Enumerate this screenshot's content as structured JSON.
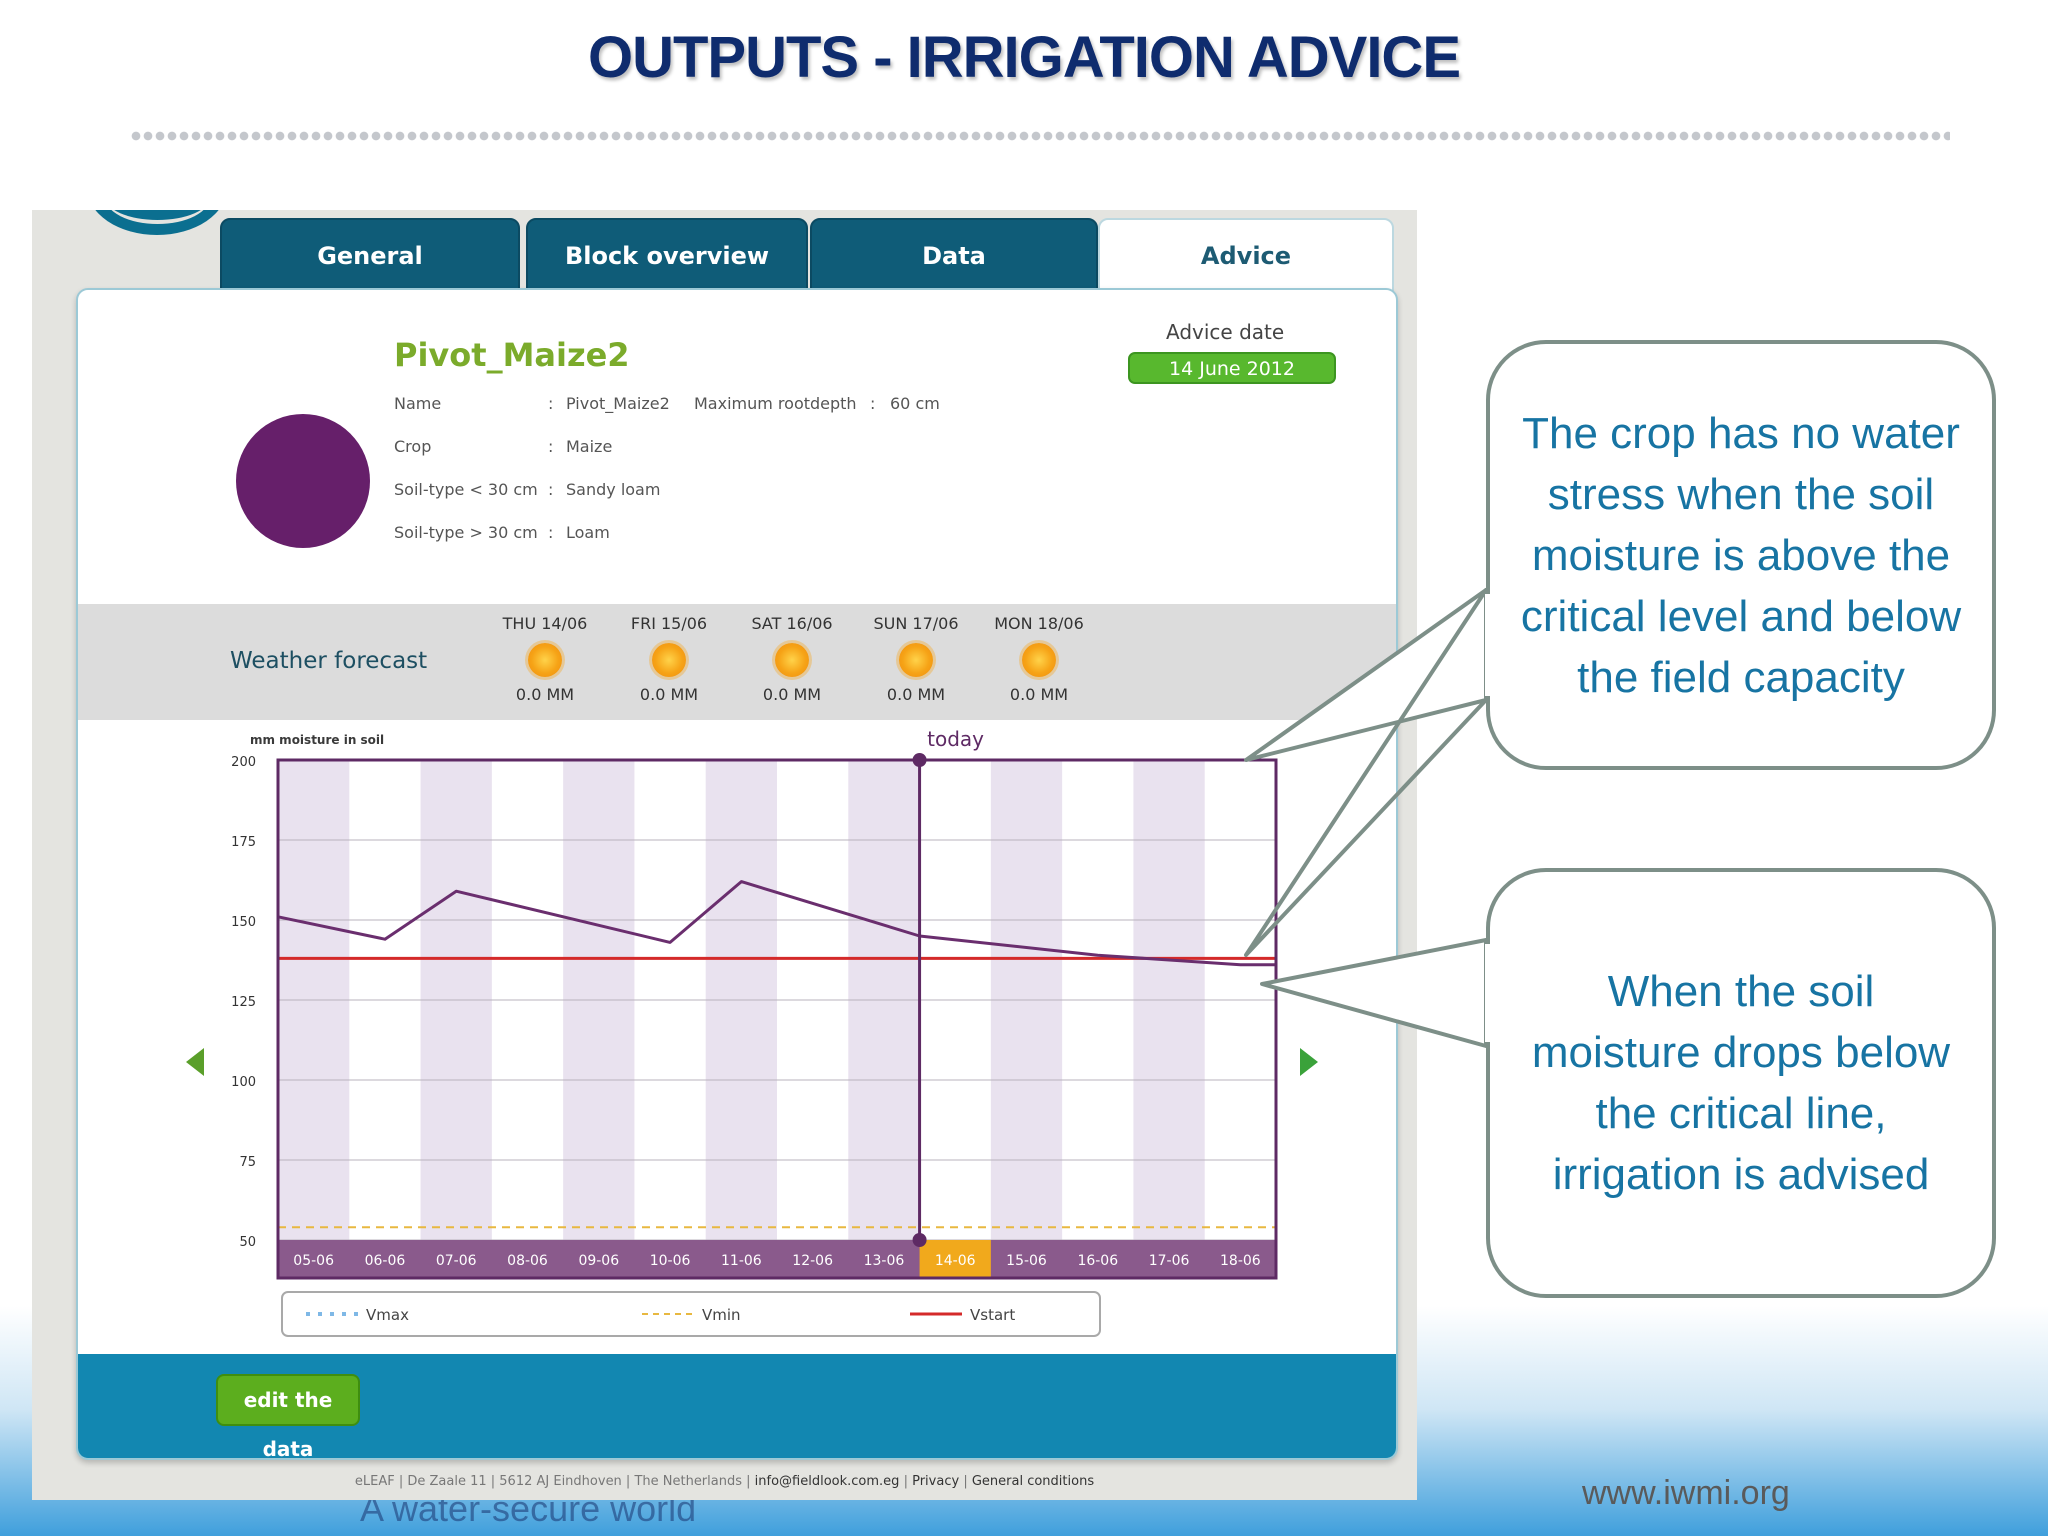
{
  "slide_title": "OUTPUTS - IRRIGATION ADVICE",
  "tabs": [
    {
      "label": "General"
    },
    {
      "label": "Block overview"
    },
    {
      "label": "Data"
    },
    {
      "label": "Advice"
    }
  ],
  "block": {
    "title": "Pivot_Maize2",
    "info": [
      {
        "label": "Name",
        "value": "Pivot_Maize2"
      },
      {
        "label": "Crop",
        "value": "Maize"
      },
      {
        "label": "Soil-type < 30 cm",
        "value": "Sandy loam"
      },
      {
        "label": "Soil-type > 30 cm",
        "value": "Loam"
      }
    ],
    "rootdepth_label": "Maximum rootdepth",
    "rootdepth_value": "60 cm",
    "colon": ":"
  },
  "advice": {
    "label": "Advice date",
    "date": "14 June 2012"
  },
  "weather": {
    "label": "Weather forecast",
    "days": [
      {
        "name": "THU 14/06",
        "rain": "0.0 MM"
      },
      {
        "name": "FRI 15/06",
        "rain": "0.0 MM"
      },
      {
        "name": "SAT 16/06",
        "rain": "0.0 MM"
      },
      {
        "name": "SUN 17/06",
        "rain": "0.0 MM"
      },
      {
        "name": "MON 18/06",
        "rain": "0.0 MM"
      }
    ]
  },
  "chart_data": {
    "type": "line",
    "ylabel": "mm moisture in soil",
    "ylim": [
      50,
      200
    ],
    "yticks": [
      200,
      175,
      150,
      125,
      100,
      75,
      50
    ],
    "categories": [
      "05-06",
      "06-06",
      "07-06",
      "08-06",
      "09-06",
      "10-06",
      "11-06",
      "12-06",
      "13-06",
      "14-06",
      "15-06",
      "16-06",
      "17-06",
      "18-06"
    ],
    "today_label": "today",
    "today_index": 9,
    "series": [
      {
        "x": [
          0,
          1.5,
          2.5,
          5.5,
          6.5,
          9.0,
          11.5,
          13.5,
          14
        ],
        "values": [
          151,
          144,
          159,
          143,
          162,
          145,
          139,
          136,
          136
        ]
      }
    ],
    "reference_lines": [
      {
        "name": "Vmax",
        "value": 200,
        "color": "#7fb8e6"
      },
      {
        "name": "Vmin",
        "value": 54,
        "color": "#e8b840"
      },
      {
        "name": "Vstart",
        "value": 138,
        "color": "#d42a2a"
      }
    ],
    "legend_position": "bottom"
  },
  "edit_button": "edit the data",
  "footer": {
    "address": "eLEAF | De Zaale 11 | 5612 AJ Eindhoven | The Netherlands |",
    "email": "info@fieldlook.com.eg",
    "sep": "|",
    "privacy": "Privacy",
    "conditions": "General conditions"
  },
  "callouts": [
    "The crop has no water stress when the soil moisture is above the critical level and below the field capacity",
    "When the soil moisture drops below the critical line, irrigation is advised"
  ],
  "url": "www.iwmi.org",
  "tagline": "A water-secure world"
}
